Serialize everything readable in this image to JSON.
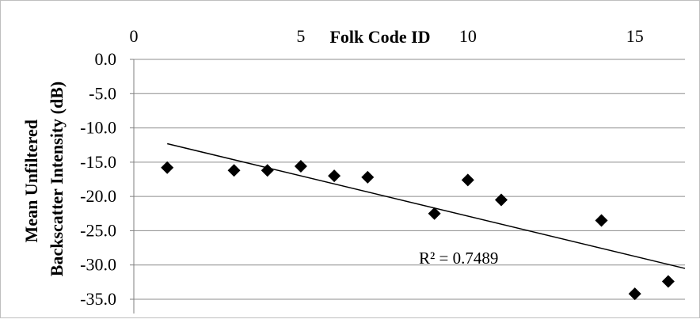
{
  "chart_data": {
    "type": "scatter",
    "title": "",
    "xlabel": "Folk Code ID",
    "ylabel": "Mean Unfiltered Backscatter Intensity (dB)",
    "ylabel_lines": [
      "Mean Unfiltered",
      "Backscatter Intensity (dB)"
    ],
    "xlim": [
      0,
      16.5
    ],
    "ylim": [
      -35.0,
      0.0
    ],
    "x_ticks": [
      0,
      5,
      10,
      15
    ],
    "x_tick_labels": [
      "0",
      "5",
      "10",
      "15"
    ],
    "y_ticks": [
      0,
      -5,
      -10,
      -15,
      -20,
      -25,
      -30,
      -35
    ],
    "y_tick_labels": [
      "0.0",
      "-5.0",
      "-10.0",
      "-15.0",
      "-20.0",
      "-25.0",
      "-30.0",
      "-35.0"
    ],
    "x_axis_position": "top",
    "grid": "horizontal",
    "marker": "diamond",
    "marker_color": "#000000",
    "points": [
      {
        "x": 1,
        "y": -15.8
      },
      {
        "x": 3,
        "y": -16.2
      },
      {
        "x": 4,
        "y": -16.2
      },
      {
        "x": 5,
        "y": -15.6
      },
      {
        "x": 6,
        "y": -17.0
      },
      {
        "x": 7,
        "y": -17.2
      },
      {
        "x": 9,
        "y": -22.5
      },
      {
        "x": 10,
        "y": -17.6
      },
      {
        "x": 11,
        "y": -20.5
      },
      {
        "x": 14,
        "y": -23.5
      },
      {
        "x": 15,
        "y": -34.2
      },
      {
        "x": 16,
        "y": -32.4
      }
    ],
    "trendline": {
      "type": "linear",
      "x": [
        1,
        16.5
      ],
      "y": [
        -12.3,
        -30.5
      ],
      "label": "R² = 0.7489"
    }
  }
}
